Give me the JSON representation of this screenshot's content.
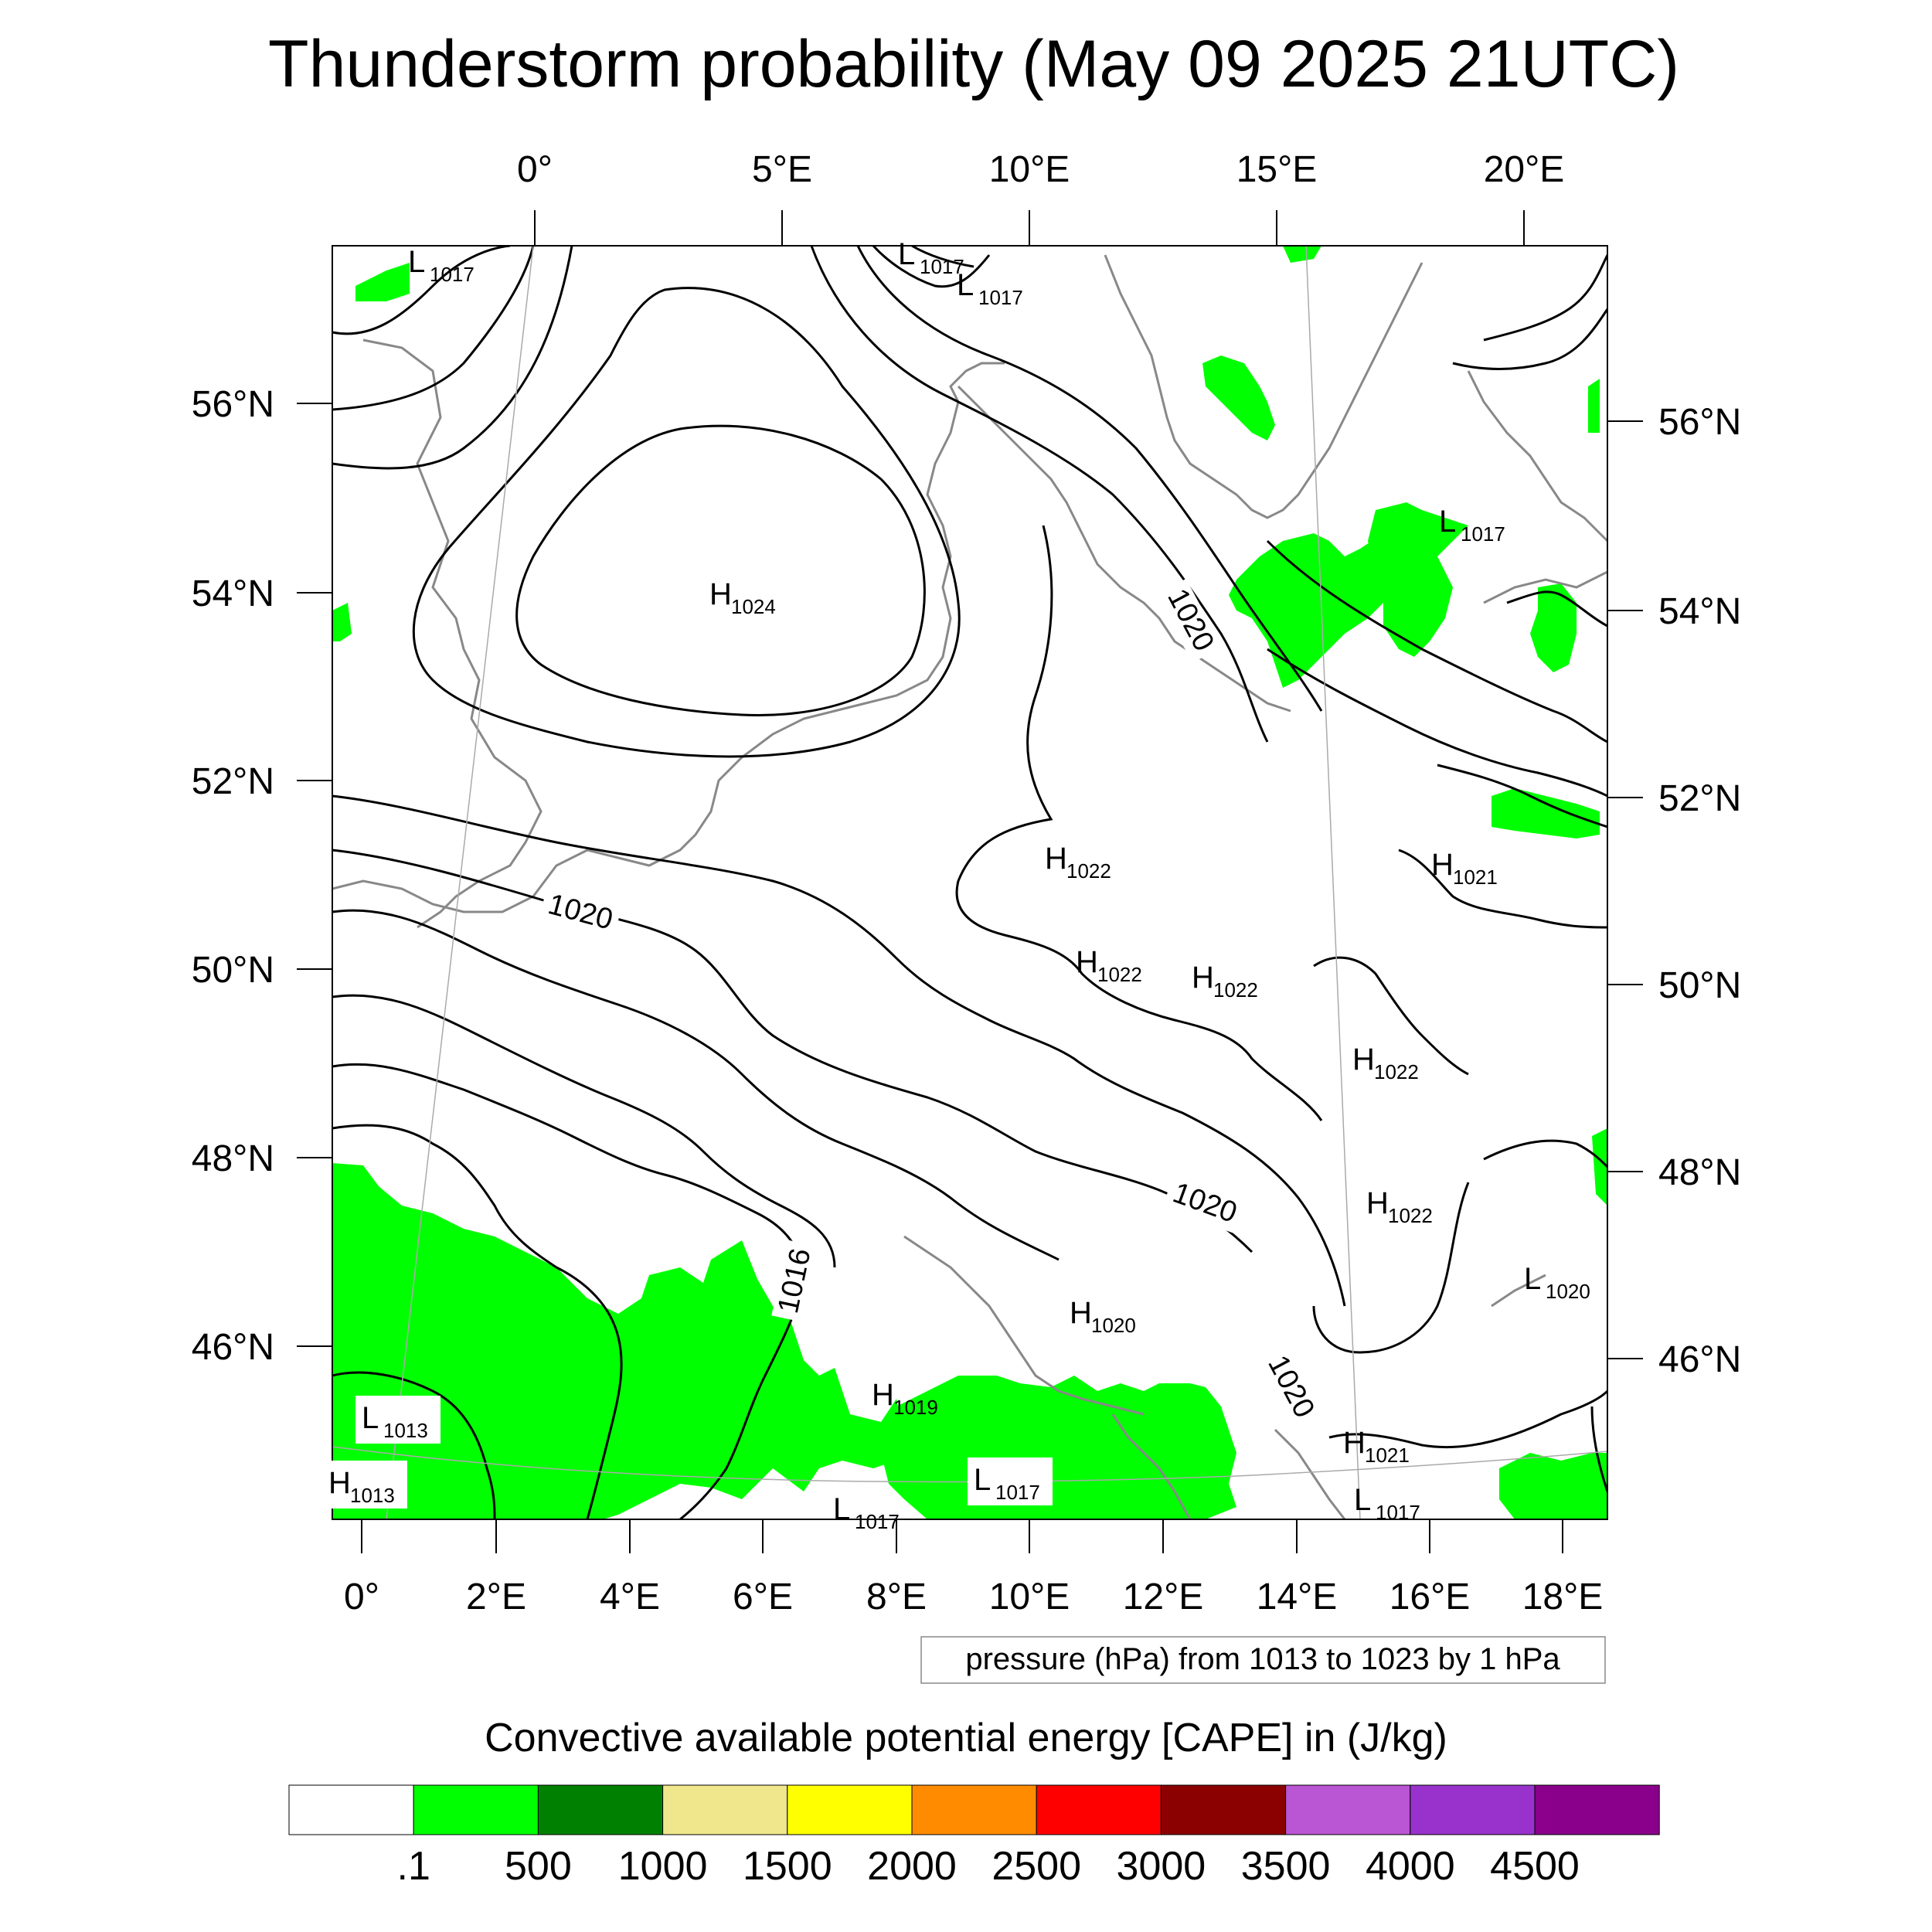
{
  "title": "Thunderstorm probability (May 09 2025 21UTC)",
  "top_lon_labels": [
    "0°",
    "5°E",
    "10°E",
    "15°E",
    "20°E"
  ],
  "bottom_lon_labels": [
    "0°",
    "2°E",
    "4°E",
    "6°E",
    "8°E",
    "10°E",
    "12°E",
    "14°E",
    "16°E",
    "18°E"
  ],
  "left_lat_labels": [
    "56°N",
    "54°N",
    "52°N",
    "50°N",
    "48°N",
    "46°N"
  ],
  "right_lat_labels": [
    "56°N",
    "54°N",
    "52°N",
    "50°N",
    "48°N",
    "46°N"
  ],
  "pressure_centers": [
    {
      "letter": "L",
      "value": "1017"
    },
    {
      "letter": "L",
      "value": "1017"
    },
    {
      "letter": "L",
      "value": "1017"
    },
    {
      "letter": "H",
      "value": "1024"
    },
    {
      "letter": "L",
      "value": "1017"
    },
    {
      "letter": "H",
      "value": "1022"
    },
    {
      "letter": "H",
      "value": "1021"
    },
    {
      "letter": "H",
      "value": "1022"
    },
    {
      "letter": "H",
      "value": "1022"
    },
    {
      "letter": "H",
      "value": "1022"
    },
    {
      "letter": "H",
      "value": "1022"
    },
    {
      "letter": "L",
      "value": "1020"
    },
    {
      "letter": "H",
      "value": "1020"
    },
    {
      "letter": "H",
      "value": "1019"
    },
    {
      "letter": "L",
      "value": "1013"
    },
    {
      "letter": "H",
      "value": "1013"
    },
    {
      "letter": "L",
      "value": "1017"
    },
    {
      "letter": "L",
      "value": "1017"
    },
    {
      "letter": "H",
      "value": "1021"
    },
    {
      "letter": "L",
      "value": "1017"
    }
  ],
  "contour_labels": [
    "1020",
    "1020",
    "1020",
    "1016",
    "1020"
  ],
  "pressure_note": "pressure (hPa) from 1013 to 1023 by 1 hPa",
  "legend": {
    "title": "Convective available potential energy [CAPE] in (J/kg)",
    "colors": [
      "#ffffff",
      "#00ff00",
      "#008000",
      "#f0e68c",
      "#ffff00",
      "#ff8c00",
      "#ff0000",
      "#8b0000",
      "#ba55d3",
      "#9932cc",
      "#8b008b"
    ],
    "labels": [
      ".1",
      "500",
      "1000",
      "1500",
      "2000",
      "2500",
      "3000",
      "3500",
      "4000",
      "4500"
    ]
  }
}
